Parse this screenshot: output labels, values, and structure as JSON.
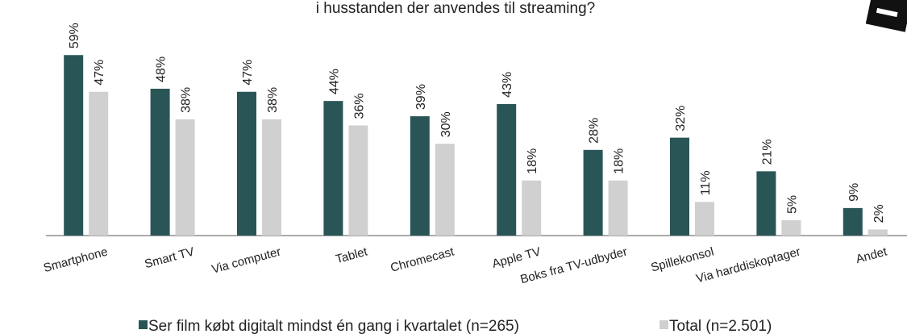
{
  "chart_data": {
    "type": "bar",
    "title": "i husstanden der anvendes til streaming?",
    "categories": [
      "Smartphone",
      "Smart TV",
      "Via computer",
      "Tablet",
      "Chromecast",
      "Apple TV",
      "Boks fra TV-udbyder",
      "Spillekonsol",
      "Via harddiskoptager",
      "Andet"
    ],
    "series": [
      {
        "name": "Ser film købt digitalt mindst én gang i kvartalet (n=265)",
        "color": "#2a5557",
        "values": [
          59,
          48,
          47,
          44,
          39,
          43,
          28,
          32,
          21,
          9
        ],
        "value_labels": [
          "59%",
          "48%",
          "47%",
          "44%",
          "39%",
          "43%",
          "28%",
          "32%",
          "21%",
          "9%"
        ]
      },
      {
        "name": "Total (n=2.501)",
        "color": "#d0d0d0",
        "values": [
          47,
          38,
          38,
          36,
          30,
          18,
          18,
          11,
          5,
          2
        ],
        "value_labels": [
          "47%",
          "38%",
          "38%",
          "36%",
          "30%",
          "18%",
          "18%",
          "11%",
          "5%",
          "2%"
        ]
      }
    ],
    "ylim": [
      0,
      77
    ],
    "legend": "bottom"
  }
}
